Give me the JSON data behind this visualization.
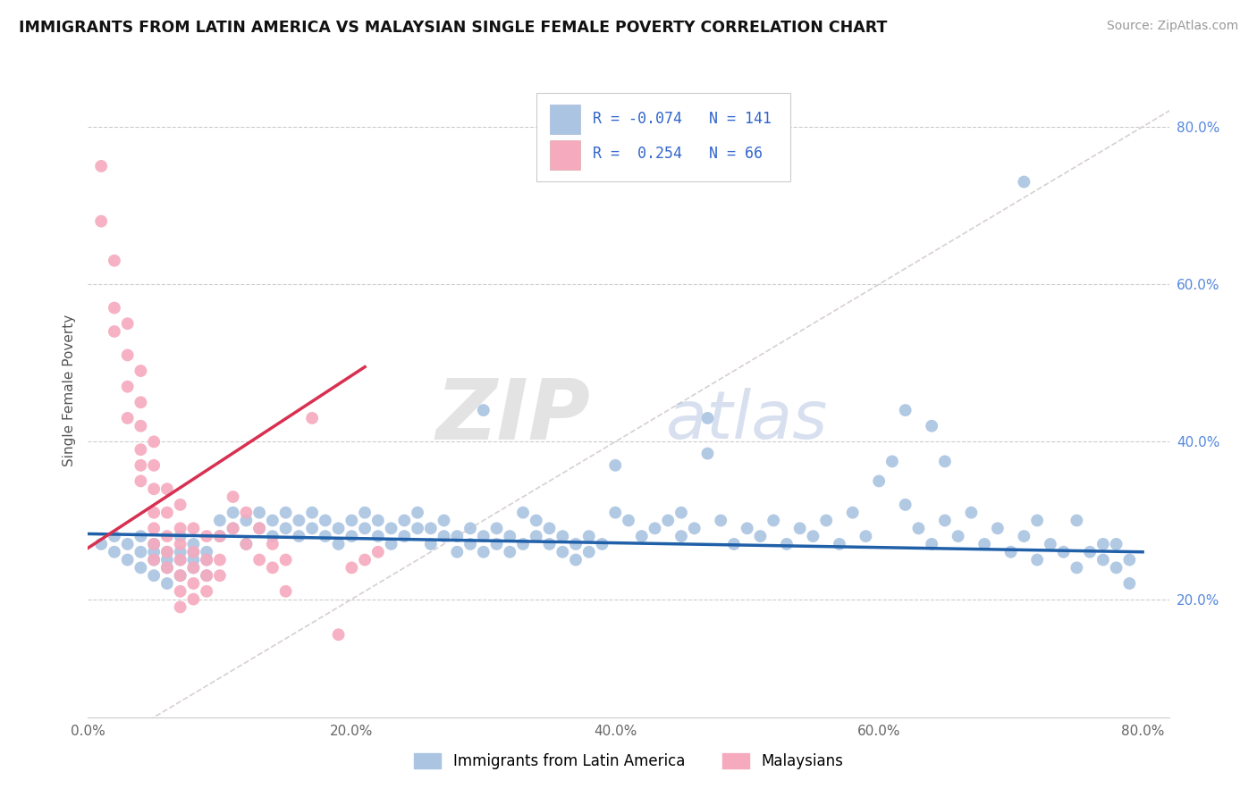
{
  "title": "IMMIGRANTS FROM LATIN AMERICA VS MALAYSIAN SINGLE FEMALE POVERTY CORRELATION CHART",
  "source": "Source: ZipAtlas.com",
  "ylabel": "Single Female Poverty",
  "xlim": [
    0.0,
    0.82
  ],
  "ylim": [
    0.05,
    0.88
  ],
  "xticks": [
    0.0,
    0.2,
    0.4,
    0.6,
    0.8
  ],
  "xticklabels": [
    "0.0%",
    "20.0%",
    "40.0%",
    "60.0%",
    "80.0%"
  ],
  "yticks_right": [
    0.2,
    0.4,
    0.6,
    0.8
  ],
  "yticklabels_right": [
    "20.0%",
    "40.0%",
    "60.0%",
    "80.0%"
  ],
  "legend_R_blue": "-0.074",
  "legend_N_blue": "141",
  "legend_R_pink": "0.254",
  "legend_N_pink": "66",
  "blue_scatter_color": "#aac4e2",
  "pink_scatter_color": "#f5aabe",
  "blue_line_color": "#2060a8",
  "pink_line_color": "#d83050",
  "diagonal_color": "#d8d0d0",
  "watermark_zip": "ZIP",
  "watermark_atlas": "atlas",
  "blue_points": [
    [
      0.01,
      0.27
    ],
    [
      0.02,
      0.26
    ],
    [
      0.02,
      0.28
    ],
    [
      0.03,
      0.25
    ],
    [
      0.03,
      0.27
    ],
    [
      0.04,
      0.24
    ],
    [
      0.04,
      0.26
    ],
    [
      0.04,
      0.28
    ],
    [
      0.05,
      0.23
    ],
    [
      0.05,
      0.25
    ],
    [
      0.05,
      0.26
    ],
    [
      0.05,
      0.27
    ],
    [
      0.06,
      0.22
    ],
    [
      0.06,
      0.24
    ],
    [
      0.06,
      0.25
    ],
    [
      0.06,
      0.26
    ],
    [
      0.07,
      0.23
    ],
    [
      0.07,
      0.25
    ],
    [
      0.07,
      0.26
    ],
    [
      0.07,
      0.28
    ],
    [
      0.08,
      0.24
    ],
    [
      0.08,
      0.25
    ],
    [
      0.08,
      0.26
    ],
    [
      0.08,
      0.27
    ],
    [
      0.09,
      0.23
    ],
    [
      0.09,
      0.25
    ],
    [
      0.09,
      0.26
    ],
    [
      0.1,
      0.28
    ],
    [
      0.1,
      0.3
    ],
    [
      0.11,
      0.29
    ],
    [
      0.11,
      0.31
    ],
    [
      0.12,
      0.27
    ],
    [
      0.12,
      0.3
    ],
    [
      0.13,
      0.29
    ],
    [
      0.13,
      0.31
    ],
    [
      0.14,
      0.28
    ],
    [
      0.14,
      0.3
    ],
    [
      0.15,
      0.29
    ],
    [
      0.15,
      0.31
    ],
    [
      0.16,
      0.28
    ],
    [
      0.16,
      0.3
    ],
    [
      0.17,
      0.29
    ],
    [
      0.17,
      0.31
    ],
    [
      0.18,
      0.28
    ],
    [
      0.18,
      0.3
    ],
    [
      0.19,
      0.27
    ],
    [
      0.19,
      0.29
    ],
    [
      0.2,
      0.28
    ],
    [
      0.2,
      0.3
    ],
    [
      0.21,
      0.29
    ],
    [
      0.21,
      0.31
    ],
    [
      0.22,
      0.28
    ],
    [
      0.22,
      0.3
    ],
    [
      0.23,
      0.27
    ],
    [
      0.23,
      0.29
    ],
    [
      0.24,
      0.28
    ],
    [
      0.24,
      0.3
    ],
    [
      0.25,
      0.29
    ],
    [
      0.25,
      0.31
    ],
    [
      0.26,
      0.27
    ],
    [
      0.26,
      0.29
    ],
    [
      0.27,
      0.28
    ],
    [
      0.27,
      0.3
    ],
    [
      0.28,
      0.26
    ],
    [
      0.28,
      0.28
    ],
    [
      0.29,
      0.27
    ],
    [
      0.29,
      0.29
    ],
    [
      0.3,
      0.26
    ],
    [
      0.3,
      0.28
    ],
    [
      0.31,
      0.27
    ],
    [
      0.31,
      0.29
    ],
    [
      0.32,
      0.26
    ],
    [
      0.32,
      0.28
    ],
    [
      0.33,
      0.27
    ],
    [
      0.33,
      0.31
    ],
    [
      0.34,
      0.28
    ],
    [
      0.34,
      0.3
    ],
    [
      0.35,
      0.27
    ],
    [
      0.35,
      0.29
    ],
    [
      0.36,
      0.26
    ],
    [
      0.36,
      0.28
    ],
    [
      0.37,
      0.25
    ],
    [
      0.37,
      0.27
    ],
    [
      0.38,
      0.26
    ],
    [
      0.38,
      0.28
    ],
    [
      0.39,
      0.27
    ],
    [
      0.4,
      0.31
    ],
    [
      0.4,
      0.37
    ],
    [
      0.41,
      0.3
    ],
    [
      0.42,
      0.28
    ],
    [
      0.43,
      0.29
    ],
    [
      0.44,
      0.3
    ],
    [
      0.45,
      0.28
    ],
    [
      0.45,
      0.31
    ],
    [
      0.46,
      0.29
    ],
    [
      0.47,
      0.385
    ],
    [
      0.48,
      0.3
    ],
    [
      0.49,
      0.27
    ],
    [
      0.5,
      0.29
    ],
    [
      0.51,
      0.28
    ],
    [
      0.52,
      0.3
    ],
    [
      0.53,
      0.27
    ],
    [
      0.54,
      0.29
    ],
    [
      0.55,
      0.28
    ],
    [
      0.56,
      0.3
    ],
    [
      0.57,
      0.27
    ],
    [
      0.58,
      0.31
    ],
    [
      0.59,
      0.28
    ],
    [
      0.6,
      0.35
    ],
    [
      0.61,
      0.375
    ],
    [
      0.62,
      0.32
    ],
    [
      0.62,
      0.44
    ],
    [
      0.63,
      0.29
    ],
    [
      0.64,
      0.27
    ],
    [
      0.64,
      0.42
    ],
    [
      0.65,
      0.3
    ],
    [
      0.65,
      0.375
    ],
    [
      0.66,
      0.28
    ],
    [
      0.67,
      0.31
    ],
    [
      0.68,
      0.27
    ],
    [
      0.69,
      0.29
    ],
    [
      0.7,
      0.26
    ],
    [
      0.71,
      0.28
    ],
    [
      0.71,
      0.73
    ],
    [
      0.72,
      0.25
    ],
    [
      0.72,
      0.3
    ],
    [
      0.73,
      0.27
    ],
    [
      0.74,
      0.26
    ],
    [
      0.75,
      0.24
    ],
    [
      0.75,
      0.3
    ],
    [
      0.76,
      0.26
    ],
    [
      0.77,
      0.25
    ],
    [
      0.77,
      0.27
    ],
    [
      0.78,
      0.24
    ],
    [
      0.78,
      0.27
    ],
    [
      0.79,
      0.22
    ],
    [
      0.79,
      0.25
    ],
    [
      0.3,
      0.44
    ],
    [
      0.47,
      0.43
    ]
  ],
  "pink_points": [
    [
      0.01,
      0.75
    ],
    [
      0.01,
      0.68
    ],
    [
      0.02,
      0.63
    ],
    [
      0.02,
      0.57
    ],
    [
      0.02,
      0.54
    ],
    [
      0.03,
      0.55
    ],
    [
      0.03,
      0.51
    ],
    [
      0.03,
      0.47
    ],
    [
      0.03,
      0.43
    ],
    [
      0.04,
      0.49
    ],
    [
      0.04,
      0.45
    ],
    [
      0.04,
      0.42
    ],
    [
      0.04,
      0.39
    ],
    [
      0.04,
      0.37
    ],
    [
      0.04,
      0.35
    ],
    [
      0.05,
      0.4
    ],
    [
      0.05,
      0.37
    ],
    [
      0.05,
      0.34
    ],
    [
      0.05,
      0.31
    ],
    [
      0.05,
      0.29
    ],
    [
      0.05,
      0.27
    ],
    [
      0.05,
      0.25
    ],
    [
      0.06,
      0.34
    ],
    [
      0.06,
      0.31
    ],
    [
      0.06,
      0.28
    ],
    [
      0.06,
      0.26
    ],
    [
      0.06,
      0.24
    ],
    [
      0.07,
      0.32
    ],
    [
      0.07,
      0.29
    ],
    [
      0.07,
      0.27
    ],
    [
      0.07,
      0.25
    ],
    [
      0.07,
      0.23
    ],
    [
      0.07,
      0.21
    ],
    [
      0.07,
      0.19
    ],
    [
      0.08,
      0.29
    ],
    [
      0.08,
      0.26
    ],
    [
      0.08,
      0.24
    ],
    [
      0.08,
      0.22
    ],
    [
      0.08,
      0.2
    ],
    [
      0.09,
      0.28
    ],
    [
      0.09,
      0.25
    ],
    [
      0.09,
      0.23
    ],
    [
      0.09,
      0.21
    ],
    [
      0.1,
      0.28
    ],
    [
      0.1,
      0.25
    ],
    [
      0.1,
      0.23
    ],
    [
      0.11,
      0.33
    ],
    [
      0.11,
      0.29
    ],
    [
      0.12,
      0.31
    ],
    [
      0.12,
      0.27
    ],
    [
      0.13,
      0.29
    ],
    [
      0.13,
      0.25
    ],
    [
      0.14,
      0.27
    ],
    [
      0.14,
      0.24
    ],
    [
      0.15,
      0.25
    ],
    [
      0.15,
      0.21
    ],
    [
      0.17,
      0.43
    ],
    [
      0.19,
      0.155
    ],
    [
      0.2,
      0.24
    ],
    [
      0.21,
      0.25
    ],
    [
      0.22,
      0.26
    ]
  ],
  "blue_line": [
    [
      0.0,
      0.283
    ],
    [
      0.8,
      0.26
    ]
  ],
  "pink_line": [
    [
      0.0,
      0.265
    ],
    [
      0.21,
      0.495
    ]
  ],
  "diag_line": [
    [
      0.0,
      0.0
    ],
    [
      0.85,
      0.85
    ]
  ]
}
